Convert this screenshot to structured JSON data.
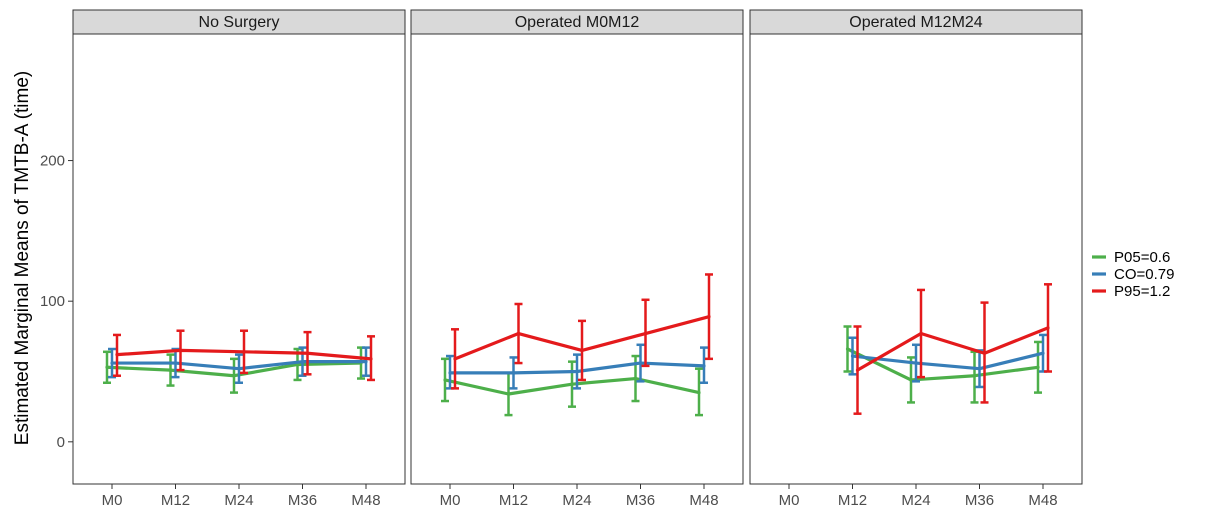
{
  "chart_data": {
    "type": "line",
    "ylabel": "Estimated Marginal Means of TMTB-A (time)",
    "xlabel": "",
    "ylim": [
      -30,
      290
    ],
    "yticks": [
      0,
      100,
      200
    ],
    "categories": [
      "M0",
      "M12",
      "M24",
      "M36",
      "M48"
    ],
    "grid": false,
    "legend_position": "right",
    "colors": {
      "P05=0.6": "#4daf4a",
      "CO=0.79": "#377eb8",
      "P95=1.2": "#e41a1c"
    },
    "series_names": [
      "P05=0.6",
      "CO=0.79",
      "P95=1.2"
    ],
    "panels": [
      {
        "title": "No Surgery",
        "series": [
          {
            "name": "P05=0.6",
            "x": [
              "M0",
              "M12",
              "M24",
              "M36",
              "M48"
            ],
            "values": [
              53,
              51,
              47,
              55,
              56
            ],
            "lower": [
              42,
              40,
              35,
              44,
              45
            ],
            "upper": [
              64,
              62,
              59,
              66,
              67
            ]
          },
          {
            "name": "CO=0.79",
            "x": [
              "M0",
              "M12",
              "M24",
              "M36",
              "M48"
            ],
            "values": [
              56,
              56,
              52,
              57,
              57
            ],
            "lower": [
              46,
              46,
              42,
              47,
              47
            ],
            "upper": [
              66,
              66,
              62,
              67,
              67
            ]
          },
          {
            "name": "P95=1.2",
            "x": [
              "M0",
              "M12",
              "M24",
              "M36",
              "M48"
            ],
            "values": [
              62,
              65,
              64,
              63,
              59
            ],
            "lower": [
              47,
              51,
              49,
              48,
              44
            ],
            "upper": [
              76,
              79,
              79,
              78,
              75
            ]
          }
        ]
      },
      {
        "title": "Operated M0M12",
        "series": [
          {
            "name": "P05=0.6",
            "x": [
              "M0",
              "M12",
              "M24",
              "M36",
              "M48"
            ],
            "values": [
              44,
              34,
              41,
              45,
              35
            ],
            "lower": [
              29,
              19,
              25,
              29,
              19
            ],
            "upper": [
              59,
              49,
              57,
              61,
              52
            ]
          },
          {
            "name": "CO=0.79",
            "x": [
              "M0",
              "M12",
              "M24",
              "M36",
              "M48"
            ],
            "values": [
              49,
              49,
              50,
              56,
              54
            ],
            "lower": [
              38,
              38,
              38,
              43,
              42
            ],
            "upper": [
              61,
              60,
              62,
              69,
              67
            ]
          },
          {
            "name": "P95=1.2",
            "x": [
              "M0",
              "M12",
              "M24",
              "M36",
              "M48"
            ],
            "values": [
              59,
              77,
              65,
              77,
              89
            ],
            "lower": [
              38,
              56,
              44,
              54,
              59
            ],
            "upper": [
              80,
              98,
              86,
              101,
              119
            ]
          }
        ]
      },
      {
        "title": "Operated M12M24",
        "series": [
          {
            "name": "P05=0.6",
            "x": [
              "M12",
              "M24",
              "M36",
              "M48"
            ],
            "values": [
              66,
              44,
              47,
              53
            ],
            "lower": [
              50,
              28,
              28,
              35
            ],
            "upper": [
              82,
              60,
              64,
              71
            ]
          },
          {
            "name": "CO=0.79",
            "x": [
              "M12",
              "M24",
              "M36",
              "M48"
            ],
            "values": [
              61,
              56,
              52,
              63
            ],
            "lower": [
              48,
              43,
              39,
              50
            ],
            "upper": [
              74,
              69,
              65,
              76
            ]
          },
          {
            "name": "P95=1.2",
            "x": [
              "M12",
              "M24",
              "M36",
              "M48"
            ],
            "values": [
              51,
              77,
              63,
              81
            ],
            "lower": [
              20,
              46,
              28,
              50
            ],
            "upper": [
              82,
              108,
              99,
              112
            ]
          }
        ]
      }
    ]
  }
}
